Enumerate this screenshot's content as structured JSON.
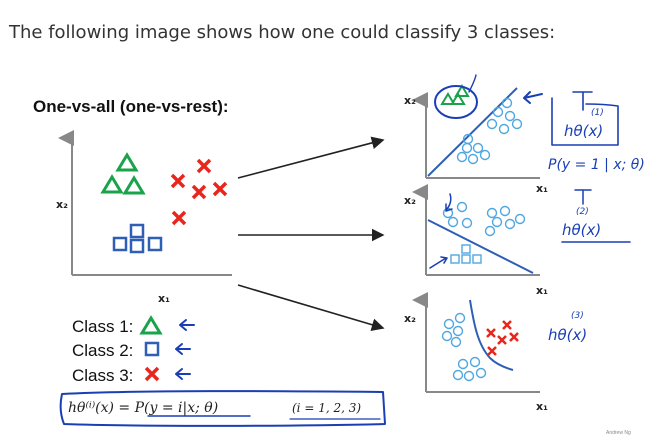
{
  "intro_text": "The following image shows how one could classify 3 classes:",
  "figure": {
    "title": "One-vs-all (one-vs-rest):",
    "x_axis": "x₁",
    "y_axis": "x₂",
    "classes": [
      {
        "label": "Class 1:",
        "symbol": "triangle-icon",
        "color": "#1aa34a"
      },
      {
        "label": "Class 2:",
        "symbol": "square-icon",
        "color": "#2e5fb5"
      },
      {
        "label": "Class 3:",
        "symbol": "cross-icon",
        "color": "#e8261c"
      }
    ],
    "formula": "hθ⁽ⁱ⁾(x) = P(y = i|x; θ)",
    "formula_range": "(i = 1, 2, 3)",
    "handwritten": {
      "h1": "hθ(x)",
      "h1_sup": "(1)",
      "p1": "P(y = 1 | x; θ)",
      "h2": "hθ(x)",
      "h2_sup": "(2)",
      "h3": "hθ(x)",
      "h3_sup": "(3)"
    },
    "watermark": "Andrew Ng",
    "ink_color": "#1a3fb5"
  }
}
